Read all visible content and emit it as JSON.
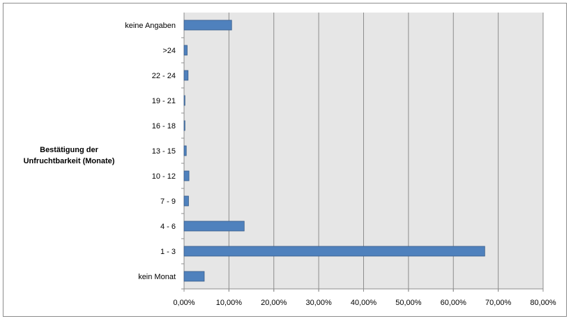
{
  "chart_data": {
    "type": "bar",
    "orientation": "horizontal",
    "ylabel_lines": [
      "Bestätigung der",
      "Unfruchtbarkeit  (Monate)"
    ],
    "categories": [
      "kein Monat",
      "1 - 3",
      "4 - 6",
      "7 - 9",
      "10 - 12",
      "13 - 15",
      "16 - 18",
      "19 - 21",
      "22 - 24",
      ">24",
      "keine Angaben"
    ],
    "values": [
      4.5,
      67.0,
      13.4,
      1.0,
      1.1,
      0.5,
      0.2,
      0.2,
      0.9,
      0.7,
      10.6
    ],
    "xlim": [
      0,
      80
    ],
    "xticks": [
      0,
      10,
      20,
      30,
      40,
      50,
      60,
      70,
      80
    ],
    "xtick_labels": [
      "0,00%",
      "10,00%",
      "20,00%",
      "30,00%",
      "40,00%",
      "50,00%",
      "60,00%",
      "70,00%",
      "80,00%"
    ],
    "grid": "vertical",
    "legend": "none",
    "colors": {
      "bar_fill": "#4f81bd",
      "bar_stroke": "#385d8a",
      "plot_background": "#e6e6e6",
      "gridline": "#8c8c8c"
    }
  }
}
